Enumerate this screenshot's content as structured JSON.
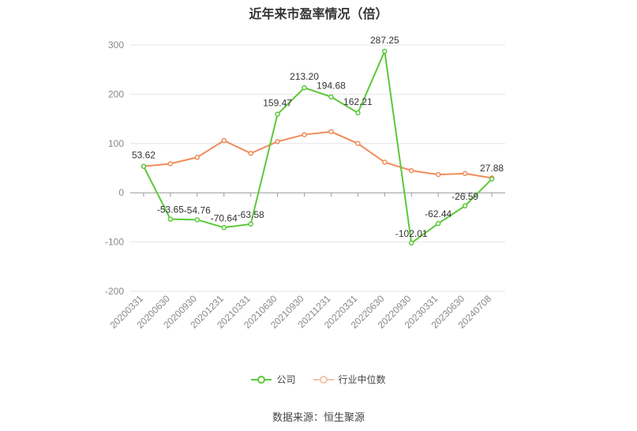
{
  "chart_data": {
    "type": "line",
    "title": "近年来市盈率情况（倍）",
    "categories": [
      "20200331",
      "20200630",
      "20200930",
      "20201231",
      "20210331",
      "20210630",
      "20210930",
      "20211231",
      "20220331",
      "20220630",
      "20220930",
      "20230331",
      "20230630",
      "20240708"
    ],
    "series": [
      {
        "name": "公司",
        "color": "#5cc83a",
        "values": [
          53.62,
          -53.65,
          -54.76,
          -70.64,
          -63.58,
          159.47,
          213.2,
          194.68,
          162.21,
          287.25,
          -102.01,
          -62.44,
          -26.59,
          27.88
        ],
        "labels": [
          "53.62",
          "-53.65",
          "-54.76",
          "-70.64",
          "-63.58",
          "159.47",
          "213.20",
          "194.68",
          "162.21",
          "287.25",
          "-102.01",
          "-62.44",
          "-26.59",
          "27.88"
        ]
      },
      {
        "name": "行业中位数",
        "color": "#f08c5a",
        "values": [
          53.62,
          59,
          72,
          106,
          80,
          104,
          118,
          124,
          100,
          62,
          45,
          37,
          39,
          30
        ]
      }
    ],
    "ylim": [
      -200,
      300
    ],
    "yticks": [
      -200,
      -100,
      0,
      100,
      200,
      300
    ],
    "grid": true,
    "legend": "bottom-center"
  },
  "source": "数据来源：恒生聚源"
}
